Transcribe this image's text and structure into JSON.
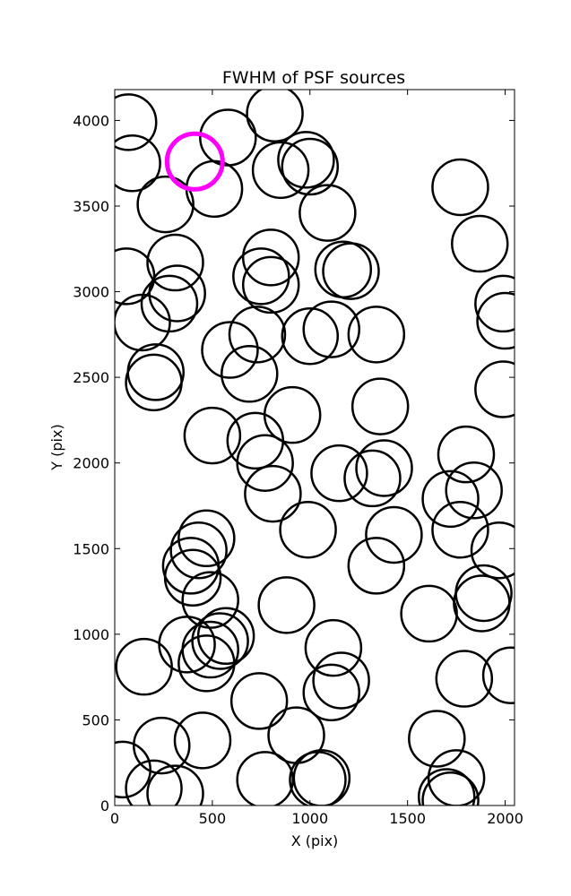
{
  "chart_data": {
    "type": "scatter",
    "title": "FWHM of PSF sources",
    "xlabel": "X (pix)",
    "ylabel": "Y (pix)",
    "xlim": [
      0,
      2048
    ],
    "ylim": [
      0,
      4180
    ],
    "xticks": [
      0,
      500,
      1000,
      1500,
      2000
    ],
    "yticks": [
      0,
      500,
      1000,
      1500,
      2000,
      2500,
      3000,
      3500,
      4000
    ],
    "grid": false,
    "marker_color": "#000000",
    "highlight_color": "#ff00ff",
    "series": [
      {
        "x": [
          70,
          90,
          260,
          510,
          580,
          820,
          850,
          980,
          1000,
          1090,
          1770,
          1870,
          60,
          310,
          320,
          280,
          750,
          800,
          800,
          1170,
          1210,
          1990,
          2000,
          140,
          210,
          200,
          590,
          690,
          730,
          1000,
          1110,
          1340,
          1990,
          500,
          720,
          770,
          910,
          1360,
          810,
          1150,
          1320,
          1380,
          1800,
          1840,
          1720,
          1770,
          470,
          430,
          390,
          400,
          490,
          990,
          1430,
          1340,
          1970,
          1890,
          1880,
          880,
          1610,
          570,
          540,
          490,
          470,
          370,
          150,
          1120,
          1160,
          1110,
          1790,
          2030,
          740,
          930,
          450,
          240,
          40,
          200,
          310,
          770,
          1060,
          1040,
          1650,
          1750,
          1700,
          1720
        ],
        "y": [
          3990,
          3750,
          3510,
          3600,
          3900,
          4040,
          3710,
          3770,
          3730,
          3460,
          3610,
          3280,
          3090,
          3170,
          2990,
          2930,
          3090,
          3200,
          3040,
          3130,
          3120,
          2930,
          2830,
          2820,
          2530,
          2470,
          2660,
          2520,
          2750,
          2740,
          2780,
          2750,
          2430,
          2160,
          2130,
          2000,
          2280,
          2330,
          1820,
          1940,
          1910,
          1970,
          2050,
          1840,
          1790,
          1610,
          1560,
          1490,
          1400,
          1330,
          1200,
          1610,
          1580,
          1400,
          1490,
          1240,
          1180,
          1170,
          1120,
          990,
          960,
          910,
          830,
          940,
          810,
          920,
          730,
          660,
          740,
          760,
          610,
          410,
          380,
          350,
          210,
          100,
          70,
          150,
          160,
          150,
          390,
          160,
          50,
          30
        ]
      },
      {
        "x": [
          410
        ],
        "y": [
          3760
        ]
      }
    ]
  }
}
